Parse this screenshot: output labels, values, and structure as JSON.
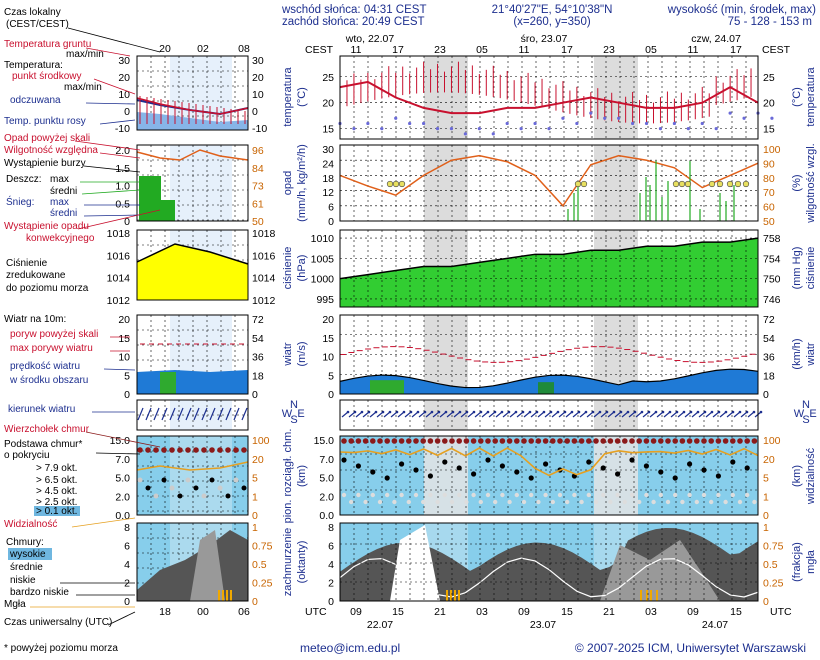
{
  "header": {
    "sunrise": "wschód słońca: 04:31 CEST",
    "sunset": "zachód słońca: 20:49 CEST",
    "coords": "21°40'27\"E, 54°10'38\"N",
    "grid": "(x=260, y=350)",
    "elev_title": "wysokość (min, środek, max)",
    "elev_values": "75 - 128 - 153 m"
  },
  "days": [
    "wto, 22.07",
    "śro, 23.07",
    "czw, 24.07"
  ],
  "day_dates": [
    "22.07",
    "23.07",
    "24.07"
  ],
  "cest_label": "CEST",
  "utc_label": "UTC",
  "cest_ticks": [
    "11",
    "17",
    "23",
    "05",
    "11",
    "17",
    "23",
    "05",
    "11",
    "17"
  ],
  "utc_ticks": [
    "09",
    "15",
    "21",
    "03",
    "09",
    "15",
    "21",
    "03",
    "09",
    "15"
  ],
  "legend": {
    "local_time": "Czas lokalny",
    "local_time2": "(CEST/CEST)",
    "local_ticks": [
      "20",
      "02",
      "08"
    ],
    "temp_ground": "Temperatura gruntu",
    "maxmin": "max/min",
    "temp": "Temperatura:",
    "temp_mid": "punkt środkowy",
    "temp_mm": "max/min",
    "perceived": "odczuwana",
    "dewpoint": "Temp. punktu rosy",
    "precip_above": "Opad powyżej skali",
    "humidity": "Wilgotność względna",
    "storm": "Wystąpienie burzy",
    "rain": "Deszcz:",
    "rain_max": "max",
    "rain_mean": "średni",
    "snow": "Śnieg:",
    "snow_max": "max",
    "snow_mean": "średni",
    "conv1": "Wystąpienie opadu",
    "conv2": "konwekcyjnego",
    "pres1": "Ciśnienie",
    "pres2": "zredukowane",
    "pres3": "do poziomu morza",
    "wind": "Wiatr na 10m:",
    "gust_above": "poryw powyżej skali",
    "gust_max": "max porywy wiatru",
    "wind_speed": "prędkość wiatru",
    "wind_area": "w środku obszaru",
    "wind_dir": "kierunek wiatru",
    "cb": "Wierzchołek chmur",
    "cloudbase1": "Podstawa chmur*",
    "cloudbase2": "o pokryciu",
    "okt": [
      "> 7.9 okt.",
      "> 6.5 okt.",
      "> 4.5 okt.",
      "> 2.5 okt.",
      "> 0.1 okt."
    ],
    "visibility": "Widzialność",
    "clouds": "Chmury:",
    "high": "wysokie",
    "mid": "średnie",
    "low": "niskie",
    "vlow": "bardzo niskie",
    "fog": "Mgła",
    "utc_time": "Czas uniwersalny (UTC)",
    "utc_ticks": [
      "18",
      "00",
      "06"
    ],
    "footnote": "* powyżej poziomu morza"
  },
  "axes": {
    "temp": "temperatura",
    "temp_unit": "(°C)",
    "precip": "opad",
    "precip_unit": "(mm/h, kg/m²/h)",
    "humid": "wilgotność wzgl.",
    "humid_unit": "(%)",
    "pres": "ciśnienie",
    "pres_unit": "(hPa)",
    "pres_unit2": "(mm Hg)",
    "wind": "wiatr",
    "wind_unit": "(m/s)",
    "wind_unit2": "(km/h)",
    "cb": "pion. rozciągł. chm.",
    "cb_unit": "(km)",
    "vis": "widzialność",
    "vis_unit": "(km)",
    "cov": "zachmurzenie",
    "cov_unit": "(oktanty)",
    "fog": "mgła",
    "fog_unit": "(frakcja)"
  },
  "ticks": {
    "temp": [
      "25",
      "20",
      "15"
    ],
    "temp_small": [
      "30",
      "20",
      "10",
      "0",
      "-10"
    ],
    "precip": [
      "30",
      "24",
      "18",
      "12",
      "6",
      "0"
    ],
    "precip_small": [
      "2.0",
      "1.5",
      "1.0",
      "0.5",
      "0"
    ],
    "humid": [
      "100",
      "90",
      "80",
      "70",
      "60",
      "50"
    ],
    "humid_small": [
      "96",
      "84",
      "73",
      "61",
      "50"
    ],
    "pres": [
      "1010",
      "1005",
      "1000",
      "995"
    ],
    "pres_small": [
      "1018",
      "1016",
      "1014",
      "1012"
    ],
    "mmhg": [
      "758",
      "754",
      "750",
      "746"
    ],
    "mmhg_small": [
      "1018",
      "1016",
      "1014",
      "1012"
    ],
    "wind": [
      "20",
      "15",
      "10",
      "5",
      "0"
    ],
    "wind_small": [
      "20",
      "15",
      "10",
      "5",
      "0"
    ],
    "kmh": [
      "72",
      "54",
      "36",
      "18",
      "0"
    ],
    "cb": [
      "15.0",
      "7.0",
      "5.0",
      "2.0",
      "0.0"
    ],
    "vis": [
      "100",
      "20",
      "5",
      "1",
      "0"
    ],
    "vis_small": [
      "100",
      "20",
      "5",
      "1",
      "0"
    ],
    "cov": [
      "8",
      "6",
      "4",
      "2",
      "0"
    ],
    "frac": [
      "1",
      "0.75",
      "0.5",
      "0.25",
      "0"
    ]
  },
  "wind_letters": {
    "n": "N",
    "w": "W",
    "e": "E",
    "s": "S"
  },
  "footer": {
    "email": "meteo@icm.edu.pl",
    "copyright": "© 2007-2025 ICM, Uniwersytet Warszawski"
  },
  "colors": {
    "night": "#dcdcdc",
    "precip_bg": "#add8e6",
    "cloud_bg": "#87ceeb",
    "pressure_fill": "#32cd32",
    "temp_line": "#c8102e",
    "humidity_line": "#e0601a",
    "axis_blue": "#1d2f8f"
  },
  "chart_data": [
    {
      "type": "line",
      "ylabel": "temperatura (°C)",
      "ylim": [
        13,
        29
      ],
      "x_utc_hours": [
        0,
        6,
        12,
        18,
        24,
        30,
        36,
        42,
        48,
        54,
        60,
        66,
        72,
        78,
        84,
        90
      ],
      "series": [
        {
          "values": [
            23,
            24,
            21,
            19,
            18,
            18,
            19,
            19,
            20,
            21,
            20,
            19,
            19,
            20,
            23,
            20
          ]
        },
        {
          "values": [
            16,
            16,
            17,
            16,
            15,
            15,
            16,
            16,
            17,
            18,
            17,
            16,
            16,
            16,
            18,
            18
          ]
        }
      ]
    },
    {
      "type": "line",
      "ylabel": "wilgotność wzgl. (%)",
      "ylim": [
        50,
        100
      ],
      "x_utc_hours": [
        0,
        6,
        12,
        18,
        24,
        30,
        36,
        42,
        48,
        54,
        60,
        66,
        72,
        78,
        84,
        90
      ],
      "values": [
        80,
        73,
        67,
        80,
        90,
        93,
        89,
        80,
        60,
        87,
        93,
        90,
        85,
        72,
        80,
        88
      ]
    },
    {
      "type": "area",
      "ylabel": "ciśnienie (hPa)",
      "ylim": [
        993,
        1012
      ],
      "x_utc_hours": [
        0,
        6,
        12,
        18,
        24,
        30,
        36,
        42,
        48,
        54,
        60,
        66,
        72,
        78,
        84,
        90
      ],
      "values": [
        1000,
        1001,
        1002,
        1003,
        1003,
        1004,
        1005,
        1006,
        1006,
        1007,
        1007,
        1008,
        1008,
        1009,
        1009,
        1010
      ]
    }
  ]
}
